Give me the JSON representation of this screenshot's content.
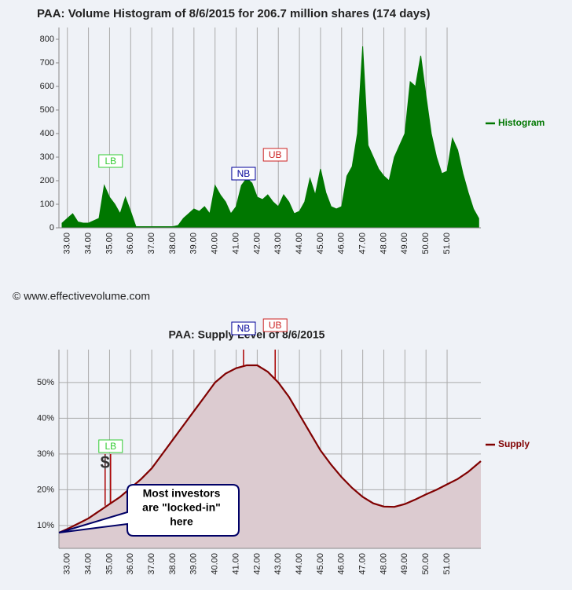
{
  "copyright": "© www.effectivevolume.com",
  "chart_data": [
    {
      "type": "area",
      "title": "PAA: Volume Histogram of 8/6/2015 for 206.7 million shares (174 days)",
      "x": [
        32.75,
        33,
        33.25,
        33.5,
        33.75,
        34,
        34.25,
        34.5,
        34.75,
        35,
        35.25,
        35.5,
        35.75,
        36,
        36.25,
        36.5,
        36.75,
        37,
        37.25,
        37.5,
        37.75,
        38,
        38.25,
        38.5,
        38.75,
        39,
        39.25,
        39.5,
        39.75,
        40,
        40.25,
        40.5,
        40.75,
        41,
        41.25,
        41.5,
        41.75,
        42,
        42.25,
        42.5,
        42.75,
        43,
        43.25,
        43.5,
        43.75,
        44,
        44.25,
        44.5,
        44.75,
        45,
        45.25,
        45.5,
        45.75,
        46,
        46.25,
        46.5,
        46.75,
        47,
        47.25,
        47.5,
        47.75,
        48,
        48.25,
        48.5,
        48.75,
        49,
        49.25,
        49.5,
        49.75,
        50,
        50.25,
        50.5,
        50.75,
        51,
        51.25,
        51.5,
        51.75,
        52,
        52.25,
        52.5
      ],
      "series": [
        {
          "name": "Histogram",
          "color": "#007700",
          "values": [
            20,
            40,
            60,
            25,
            20,
            20,
            30,
            40,
            180,
            130,
            100,
            60,
            130,
            70,
            5,
            5,
            5,
            5,
            5,
            5,
            5,
            5,
            10,
            40,
            60,
            80,
            70,
            90,
            60,
            180,
            140,
            110,
            60,
            90,
            180,
            210,
            190,
            130,
            120,
            140,
            110,
            90,
            140,
            110,
            60,
            70,
            110,
            210,
            140,
            250,
            150,
            90,
            80,
            90,
            220,
            260,
            400,
            770,
            350,
            300,
            250,
            220,
            200,
            300,
            350,
            400,
            620,
            600,
            730,
            560,
            400,
            300,
            230,
            240,
            380,
            330,
            230,
            150,
            80,
            40
          ]
        }
      ],
      "xlim": [
        32.6,
        52.6
      ],
      "xticks": [
        {
          "value": 33,
          "label": "33.00"
        },
        {
          "value": 34,
          "label": "34.00"
        },
        {
          "value": 35,
          "label": "35.00"
        },
        {
          "value": 36,
          "label": "36.00"
        },
        {
          "value": 37,
          "label": "37.00"
        },
        {
          "value": 38,
          "label": "38.00"
        },
        {
          "value": 39,
          "label": "39.00"
        },
        {
          "value": 40,
          "label": "40.00"
        },
        {
          "value": 41,
          "label": "41.00"
        },
        {
          "value": 42,
          "label": "42.00"
        },
        {
          "value": 43,
          "label": "43.00"
        },
        {
          "value": 44,
          "label": "44.00"
        },
        {
          "value": 45,
          "label": "45.00"
        },
        {
          "value": 46,
          "label": "46.00"
        },
        {
          "value": 47,
          "label": "47.00"
        },
        {
          "value": 48,
          "label": "48.00"
        },
        {
          "value": 49,
          "label": "49.00"
        },
        {
          "value": 50,
          "label": "50.00"
        },
        {
          "value": 51,
          "label": "51.00"
        }
      ],
      "ylim": [
        0,
        850
      ],
      "yticks": [
        0,
        100,
        200,
        300,
        400,
        500,
        600,
        700,
        800
      ],
      "grid": "x",
      "markers": [
        {
          "label": "LB",
          "x": 35.05,
          "color": "#33cc33"
        },
        {
          "label": "NB",
          "x": 41.35,
          "color": "#000099"
        },
        {
          "label": "UB",
          "x": 42.85,
          "color": "#cc2222"
        }
      ]
    },
    {
      "type": "line",
      "title": "PAA: Supply Level of 8/6/2015",
      "x": [
        32.6,
        33,
        33.5,
        34,
        34.5,
        35,
        35.5,
        36,
        36.5,
        37,
        37.5,
        38,
        38.5,
        39,
        39.5,
        40,
        40.5,
        41,
        41.5,
        42,
        42.5,
        43,
        43.5,
        44,
        44.5,
        45,
        45.5,
        46,
        46.5,
        47,
        47.5,
        48,
        48.5,
        49,
        49.5,
        50,
        50.5,
        51,
        51.5,
        52,
        52.6
      ],
      "series": [
        {
          "name": "Supply",
          "color": "#800000",
          "fill": "#dccbd0",
          "values": [
            8,
            9,
            10.5,
            12,
            14,
            16,
            18,
            20.5,
            23,
            26,
            30,
            34,
            38,
            42,
            46,
            50,
            52.5,
            54,
            54.8,
            54.8,
            53,
            50,
            46,
            41,
            36,
            31,
            27,
            23.5,
            20.5,
            18,
            16.2,
            15.3,
            15.2,
            16,
            17.3,
            18.7,
            20,
            21.5,
            23,
            25,
            28
          ]
        }
      ],
      "xlim": [
        32.6,
        52.6
      ],
      "xticks": [
        {
          "value": 33,
          "label": "33.00"
        },
        {
          "value": 34,
          "label": "34.00"
        },
        {
          "value": 35,
          "label": "35.00"
        },
        {
          "value": 36,
          "label": "36.00"
        },
        {
          "value": 37,
          "label": "37.00"
        },
        {
          "value": 38,
          "label": "38.00"
        },
        {
          "value": 39,
          "label": "39.00"
        },
        {
          "value": 40,
          "label": "40.00"
        },
        {
          "value": 41,
          "label": "41.00"
        },
        {
          "value": 42,
          "label": "42.00"
        },
        {
          "value": 43,
          "label": "43.00"
        },
        {
          "value": 44,
          "label": "44.00"
        },
        {
          "value": 45,
          "label": "45.00"
        },
        {
          "value": 46,
          "label": "46.00"
        },
        {
          "value": 47,
          "label": "47.00"
        },
        {
          "value": 48,
          "label": "48.00"
        },
        {
          "value": 49,
          "label": "49.00"
        },
        {
          "value": 50,
          "label": "50.00"
        },
        {
          "value": 51,
          "label": "51.00"
        }
      ],
      "ylim": [
        3.6,
        59.2
      ],
      "yticks": [
        {
          "value": 10,
          "label": "10%"
        },
        {
          "value": 20,
          "label": "20%"
        },
        {
          "value": 30,
          "label": "30%"
        },
        {
          "value": 40,
          "label": "40%"
        },
        {
          "value": 50,
          "label": "50%"
        }
      ],
      "grid": "both",
      "markers": [
        {
          "label": "LB",
          "x": 35.05,
          "color": "#33cc33"
        },
        {
          "label": "NB",
          "x": 41.35,
          "color": "#000099"
        },
        {
          "label": "UB",
          "x": 42.85,
          "color": "#cc2222"
        }
      ],
      "dollar_sign": "$",
      "callout": [
        "Most investors",
        "are \"locked-in\"",
        "here"
      ]
    }
  ]
}
